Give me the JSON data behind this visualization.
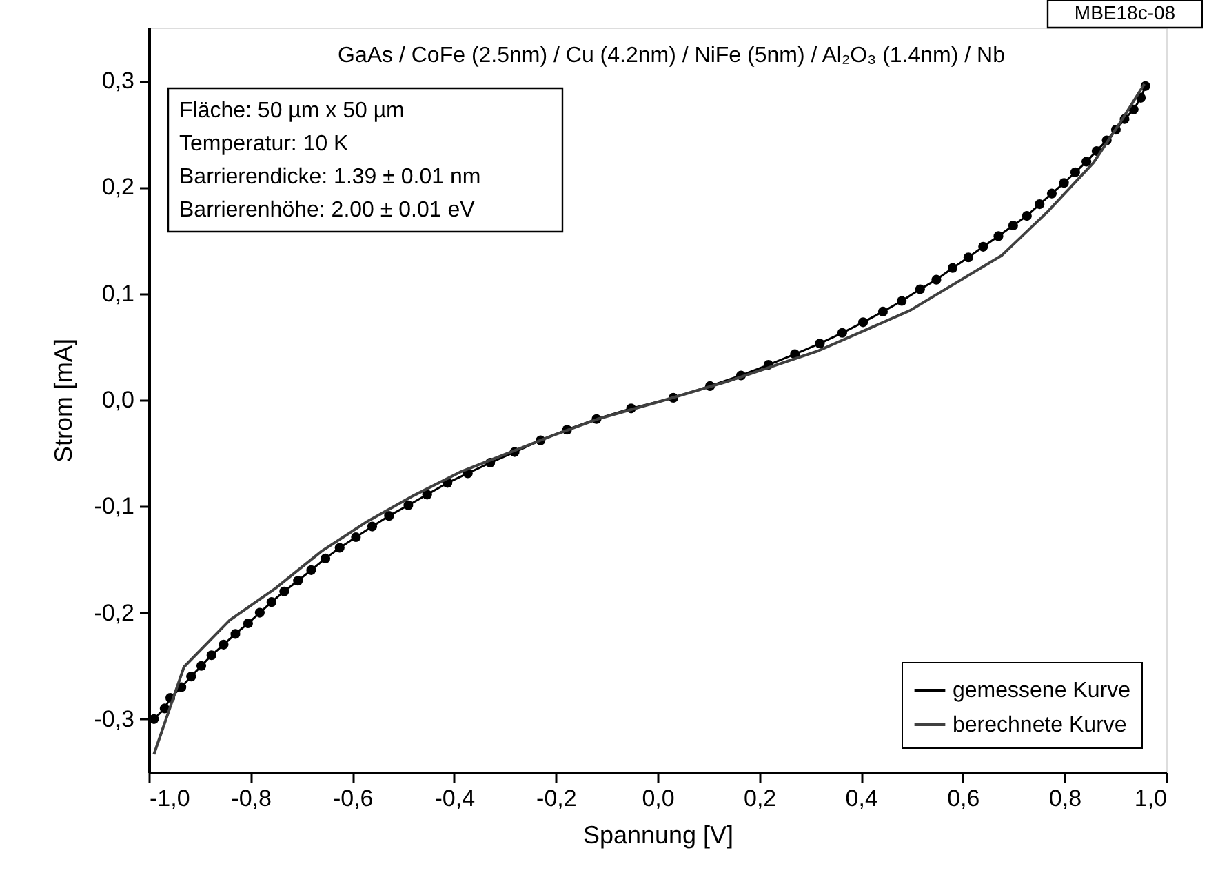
{
  "chart_data": {
    "type": "line",
    "title": "GaAs / CoFe (2.5nm) / Cu (4.2nm) / NiFe (5nm) / Al₂O₃ (1.4nm) / Nb",
    "xlabel": "Spannung [V]",
    "ylabel": "Strom [mA]",
    "annotations": [
      "Fläche: 50 µm x 50 µm",
      "Temperatur: 10 K",
      "Barrierendicke: 1.39 ± 0.01 nm",
      "Barrierenhöhe:  2.00 ± 0.01 eV",
      "MBE18c-08"
    ],
    "xlim": [
      -1.0,
      1.0
    ],
    "ylim": [
      -0.35,
      0.35
    ],
    "xticks": [
      {
        "value": -1.0,
        "label": "-1,0"
      },
      {
        "value": -0.8,
        "label": "-0,8"
      },
      {
        "value": -0.6,
        "label": "-0,6"
      },
      {
        "value": -0.4,
        "label": "-0,4"
      },
      {
        "value": -0.2,
        "label": "-0,2"
      },
      {
        "value": 0.0,
        "label": "0,0"
      },
      {
        "value": 0.2,
        "label": "0,2"
      },
      {
        "value": 0.4,
        "label": "0,4"
      },
      {
        "value": 0.6,
        "label": "0,6"
      },
      {
        "value": 0.8,
        "label": "0,8"
      },
      {
        "value": 1.0,
        "label": "1,0"
      }
    ],
    "yticks": [
      {
        "value": -0.3,
        "label": "-0,3"
      },
      {
        "value": -0.2,
        "label": "-0,2"
      },
      {
        "value": -0.1,
        "label": "-0,1"
      },
      {
        "value": 0.0,
        "label": "0,0"
      },
      {
        "value": 0.1,
        "label": "0,1"
      },
      {
        "value": 0.2,
        "label": "0,2"
      },
      {
        "value": 0.3,
        "label": "0,3"
      }
    ],
    "grid": false,
    "legend": "bottom right",
    "series": [
      {
        "name": "gemessene Kurve",
        "color": "#000000",
        "marker": "circle",
        "line_style": "solid",
        "x": [
          -0.99,
          -0.969,
          -0.958,
          -0.936,
          -0.917,
          -0.897,
          -0.877,
          -0.853,
          -0.83,
          -0.805,
          -0.782,
          -0.759,
          -0.734,
          -0.707,
          -0.681,
          -0.653,
          -0.625,
          -0.593,
          -0.561,
          -0.528,
          -0.49,
          -0.453,
          -0.413,
          -0.373,
          -0.329,
          -0.281,
          -0.23,
          -0.178,
          -0.12,
          -0.052,
          0.031,
          0.103,
          0.164,
          0.218,
          0.27,
          0.319,
          0.363,
          0.404,
          0.443,
          0.48,
          0.516,
          0.548,
          0.58,
          0.611,
          0.64,
          0.67,
          0.699,
          0.726,
          0.751,
          0.775,
          0.799,
          0.821,
          0.843,
          0.863,
          0.883,
          0.901,
          0.918,
          0.936,
          0.95,
          0.959
        ],
        "values": [
          -0.3,
          -0.29,
          -0.28,
          -0.27,
          -0.26,
          -0.25,
          -0.24,
          -0.23,
          -0.22,
          -0.21,
          -0.2,
          -0.19,
          -0.18,
          -0.17,
          -0.16,
          -0.149,
          -0.139,
          -0.129,
          -0.119,
          -0.109,
          -0.099,
          -0.089,
          -0.078,
          -0.069,
          -0.059,
          -0.049,
          -0.038,
          -0.028,
          -0.018,
          -0.008,
          0.002,
          0.013,
          0.023,
          0.033,
          0.043,
          0.053,
          0.063,
          0.073,
          0.083,
          0.093,
          0.104,
          0.113,
          0.124,
          0.134,
          0.144,
          0.154,
          0.164,
          0.173,
          0.184,
          0.194,
          0.204,
          0.214,
          0.224,
          0.234,
          0.244,
          0.254,
          0.264,
          0.273,
          0.284,
          0.295
        ]
      },
      {
        "name": "berechnete Kurve",
        "color": "#404040",
        "marker": "none",
        "line_style": "solid",
        "x": [
          -0.99,
          -0.931,
          -0.841,
          -0.751,
          -0.66,
          -0.57,
          -0.48,
          -0.389,
          -0.299,
          -0.209,
          -0.118,
          0.008,
          0.135,
          0.315,
          0.496,
          0.677,
          0.767,
          0.857,
          0.911,
          0.957
        ],
        "values": [
          -0.333,
          -0.251,
          -0.207,
          -0.177,
          -0.142,
          -0.114,
          -0.09,
          -0.068,
          -0.051,
          -0.034,
          -0.018,
          -0.001,
          0.017,
          0.046,
          0.084,
          0.136,
          0.177,
          0.223,
          0.262,
          0.297
        ]
      }
    ]
  }
}
